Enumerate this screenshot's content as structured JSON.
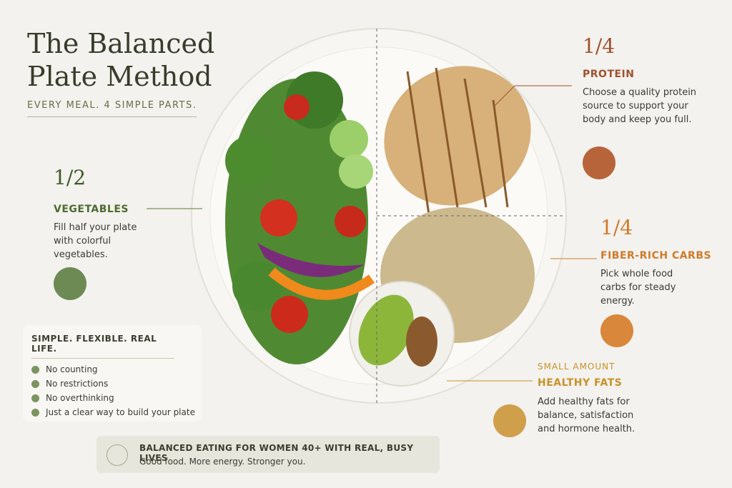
{
  "header": {
    "title_lines": [
      "The Balanced",
      "Plate Method"
    ],
    "subtitle": "EVERY MEAL. 4 SIMPLE PARTS."
  },
  "sections": [
    {
      "fraction": "1/2",
      "label": "VEGETABLES",
      "text": "Fill half your plate with colorful vegetables."
    },
    {
      "fraction": "1/4",
      "label": "PROTEIN",
      "text": "Choose a quality protein source to support your body and keep you full."
    },
    {
      "fraction": "1/4",
      "label": "FIBER-RICH CARBS",
      "text": "Pick whole food carbs for steady energy."
    },
    {
      "fraction": "SMALL AMOUNT",
      "label": "HEALTHY FATS",
      "text": "Add healthy fats for balance, satisfaction and hormone health."
    }
  ],
  "box": {
    "title": "SIMPLE. FLEXIBLE. REAL LIFE.",
    "items": [
      "No counting",
      "No restrictions",
      "No overthinking",
      "Just a clear way to build your plate"
    ]
  },
  "banner": {
    "title": "BALANCED EATING FOR WOMEN 40+ WITH REAL, BUSY LIVES",
    "text": "Good food. More energy. Stronger you."
  }
}
